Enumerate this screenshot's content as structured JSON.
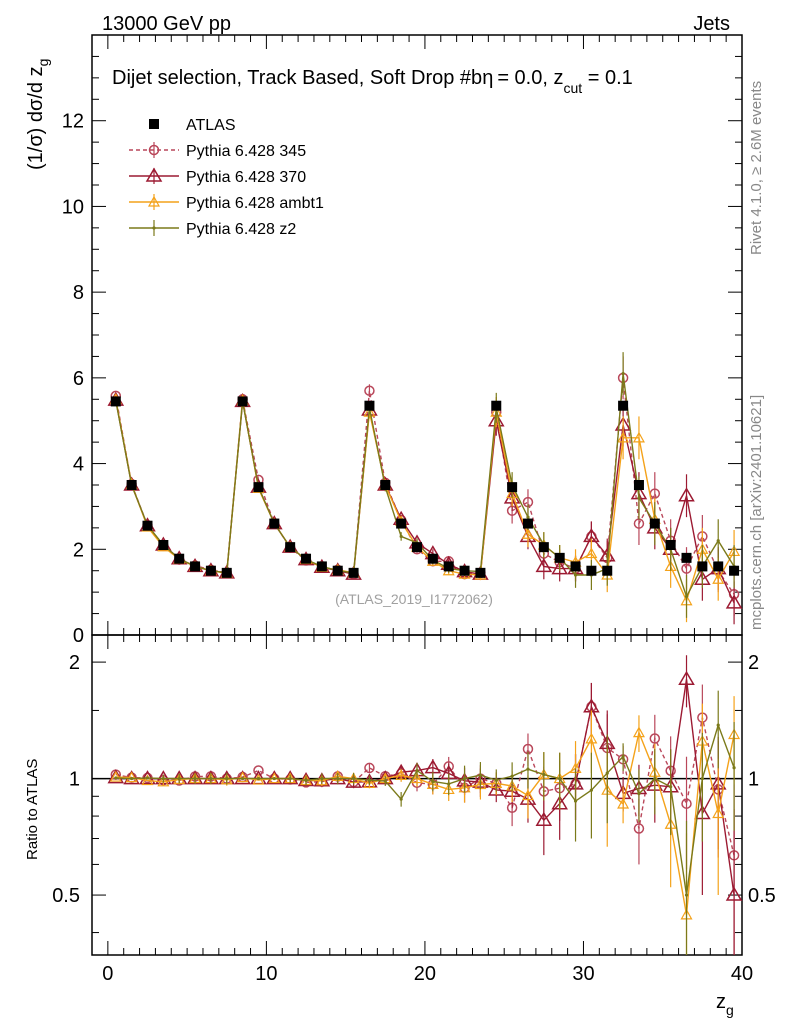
{
  "header": {
    "left": "13000 GeV pp",
    "right": "Jets",
    "side_rivet": "Rivet 4.1.0, ≥ 2.6M events",
    "side_mcplots": "mcplots.cern.ch [arXiv:2401.10621]"
  },
  "colors": {
    "atlas": "#000000",
    "p345": "#b9475a",
    "p370": "#9c1a32",
    "ambt1": "#f4a21a",
    "z2": "#7b7a1a"
  },
  "chart_data": {
    "type": "line",
    "title": "Dijet selection, Track Based, Soft Drop #b",
    "title_extra": "= 0.0, z",
    "title_sub": "cut",
    "title_end": " = 0.1",
    "title_eta": "η",
    "watermark": "(ATLAS_2019_I1772062)",
    "xlabel_main": "z",
    "xlabel_sub": "g",
    "ylabel_main": "(1/σ) dσ/d z",
    "ylabel_sub": "g",
    "ratio_ylabel": "Ratio to ATLAS",
    "xlim": [
      -1,
      40
    ],
    "ylim": [
      0,
      14
    ],
    "ratio_ylim": [
      0.35,
      2.35
    ],
    "x_ticks": [
      0,
      10,
      20,
      30,
      40
    ],
    "x_tick_labels": [
      "0",
      "10",
      "20",
      "30",
      "40"
    ],
    "y_ticks": [
      0,
      2,
      4,
      6,
      8,
      10,
      12
    ],
    "y_tick_labels": [
      "0",
      "2",
      "4",
      "6",
      "8",
      "10",
      "12"
    ],
    "ratio_ticks": [
      0.5,
      1,
      2
    ],
    "ratio_tick_labels": [
      "0.5",
      "1",
      "2"
    ],
    "x": [
      0.5,
      1.5,
      2.5,
      3.5,
      4.5,
      5.5,
      6.5,
      7.5,
      8.5,
      9.5,
      10.5,
      11.5,
      12.5,
      13.5,
      14.5,
      15.5,
      16.5,
      17.5,
      18.5,
      19.5,
      20.5,
      21.5,
      22.5,
      23.5,
      24.5,
      25.5,
      26.5,
      27.5,
      28.5,
      29.5,
      30.5,
      31.5,
      32.5,
      33.5,
      34.5,
      35.5,
      36.5,
      37.5,
      38.5,
      39.5
    ],
    "series": [
      {
        "name": "ATLAS",
        "key": "atlas",
        "values": [
          5.45,
          3.5,
          2.55,
          2.1,
          1.78,
          1.6,
          1.5,
          1.45,
          5.45,
          3.45,
          2.6,
          2.05,
          1.78,
          1.6,
          1.5,
          1.45,
          5.35,
          3.5,
          2.6,
          2.05,
          1.78,
          1.6,
          1.5,
          1.45,
          5.35,
          3.45,
          2.6,
          2.05,
          1.8,
          1.6,
          1.5,
          1.5,
          5.35,
          3.5,
          2.6,
          2.1,
          1.8,
          1.6,
          1.6,
          1.5
        ]
      },
      {
        "name": "Pythia 6.428 345",
        "key": "p345",
        "values": [
          5.58,
          3.52,
          2.56,
          2.08,
          1.76,
          1.62,
          1.52,
          1.45,
          5.5,
          3.62,
          2.6,
          2.04,
          1.74,
          1.57,
          1.52,
          1.42,
          5.7,
          3.55,
          2.68,
          2.0,
          1.72,
          1.72,
          1.42,
          1.45,
          5.2,
          2.9,
          3.1,
          1.9,
          1.7,
          1.55,
          2.3,
          1.8,
          6.0,
          2.6,
          3.3,
          2.2,
          1.55,
          2.3,
          1.5,
          0.95
        ],
        "errors": [
          0.05,
          0.05,
          0.05,
          0.05,
          0.05,
          0.05,
          0.05,
          0.05,
          0.06,
          0.06,
          0.05,
          0.05,
          0.05,
          0.05,
          0.05,
          0.05,
          0.15,
          0.1,
          0.1,
          0.1,
          0.1,
          0.1,
          0.12,
          0.12,
          0.35,
          0.3,
          0.3,
          0.3,
          0.3,
          0.3,
          0.35,
          0.4,
          0.5,
          0.5,
          0.5,
          0.5,
          0.5,
          0.5,
          0.5,
          0.5
        ]
      },
      {
        "name": "Pythia 6.428 370",
        "key": "p370",
        "values": [
          5.48,
          3.5,
          2.55,
          2.1,
          1.78,
          1.6,
          1.5,
          1.45,
          5.45,
          3.45,
          2.6,
          2.05,
          1.76,
          1.58,
          1.5,
          1.42,
          5.25,
          3.5,
          2.7,
          2.15,
          1.9,
          1.65,
          1.48,
          1.42,
          5.0,
          3.2,
          2.3,
          1.6,
          1.55,
          1.55,
          2.3,
          1.85,
          4.9,
          3.3,
          2.5,
          2.0,
          3.25,
          1.3,
          1.55,
          0.75
        ],
        "errors": [
          0.05,
          0.05,
          0.05,
          0.05,
          0.05,
          0.05,
          0.05,
          0.05,
          0.06,
          0.06,
          0.05,
          0.05,
          0.05,
          0.05,
          0.05,
          0.05,
          0.15,
          0.1,
          0.1,
          0.1,
          0.1,
          0.1,
          0.12,
          0.12,
          0.35,
          0.3,
          0.3,
          0.3,
          0.3,
          0.3,
          0.35,
          0.4,
          0.5,
          0.5,
          0.5,
          0.5,
          0.5,
          0.5,
          0.5,
          0.5
        ]
      },
      {
        "name": "Pythia 6.428 ambt1",
        "key": "ambt1",
        "values": [
          5.5,
          3.52,
          2.52,
          2.06,
          1.77,
          1.6,
          1.5,
          1.44,
          5.48,
          3.42,
          2.6,
          2.05,
          1.76,
          1.58,
          1.52,
          1.45,
          5.2,
          3.5,
          2.65,
          2.05,
          1.72,
          1.5,
          1.42,
          1.4,
          5.2,
          3.3,
          2.35,
          2.1,
          1.8,
          1.7,
          1.9,
          1.4,
          4.6,
          4.6,
          2.7,
          1.6,
          0.8,
          2.0,
          1.3,
          1.95
        ],
        "errors": [
          0.05,
          0.05,
          0.05,
          0.05,
          0.05,
          0.05,
          0.05,
          0.05,
          0.06,
          0.06,
          0.05,
          0.05,
          0.05,
          0.05,
          0.05,
          0.05,
          0.15,
          0.1,
          0.1,
          0.1,
          0.1,
          0.1,
          0.12,
          0.12,
          0.35,
          0.3,
          0.3,
          0.3,
          0.3,
          0.3,
          0.35,
          0.4,
          0.5,
          0.5,
          0.5,
          0.5,
          0.5,
          0.5,
          0.5,
          0.5
        ]
      },
      {
        "name": "Pythia 6.428 z2",
        "key": "z2",
        "values": [
          5.47,
          3.5,
          2.56,
          2.1,
          1.78,
          1.6,
          1.5,
          1.45,
          5.45,
          3.45,
          2.6,
          2.05,
          1.76,
          1.6,
          1.5,
          1.45,
          5.3,
          3.45,
          2.3,
          2.15,
          1.75,
          1.55,
          1.5,
          1.48,
          5.3,
          3.5,
          2.75,
          2.1,
          1.8,
          1.4,
          1.4,
          1.55,
          6.1,
          3.2,
          2.6,
          2.0,
          0.9,
          1.6,
          2.2,
          1.6
        ],
        "errors": [
          0.05,
          0.05,
          0.05,
          0.05,
          0.05,
          0.05,
          0.05,
          0.05,
          0.06,
          0.06,
          0.05,
          0.05,
          0.05,
          0.05,
          0.05,
          0.05,
          0.15,
          0.1,
          0.1,
          0.1,
          0.1,
          0.1,
          0.12,
          0.12,
          0.35,
          0.3,
          0.3,
          0.3,
          0.3,
          0.3,
          0.35,
          0.4,
          0.5,
          0.5,
          0.5,
          0.5,
          0.5,
          0.5,
          0.5,
          0.5
        ]
      }
    ]
  }
}
